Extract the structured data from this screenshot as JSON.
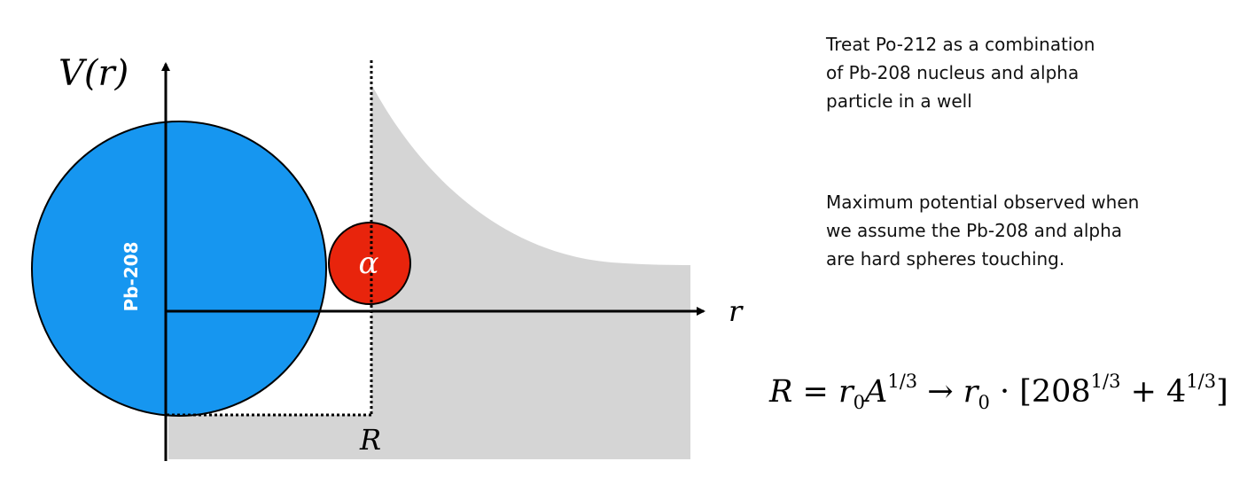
{
  "diagram": {
    "labels": {
      "y_axis": "V(r)",
      "x_axis": "r",
      "radius_marker": "R",
      "nucleus": "Pb-208",
      "particle": "α"
    },
    "colors": {
      "nucleus_fill": "#1696f0",
      "particle_fill": "#e8240c",
      "potential_fill": "#d5d5d5",
      "nucleus_label": "#ffffff",
      "particle_label": "#ffffff"
    }
  },
  "notes": {
    "paragraph_1": "Treat Po-212 as a combination\nof Pb-208 nucleus and alpha\nparticle in a well",
    "paragraph_2": "Maximum potential observed when\nwe assume the Pb-208 and alpha\nare hard spheres touching."
  },
  "formula": {
    "lhs": "R",
    "equals": " = ",
    "r0_a": "r",
    "r0_a_sub": "0",
    "a_var": "A",
    "a_exp": "1/3",
    "arrow": " → ",
    "r0_b": "r",
    "r0_b_sub": "0",
    "dot": " · [",
    "base_1": "208",
    "exp_1": "1/3",
    "plus": " + ",
    "base_2": "4",
    "exp_2": "1/3",
    "close": "]"
  }
}
